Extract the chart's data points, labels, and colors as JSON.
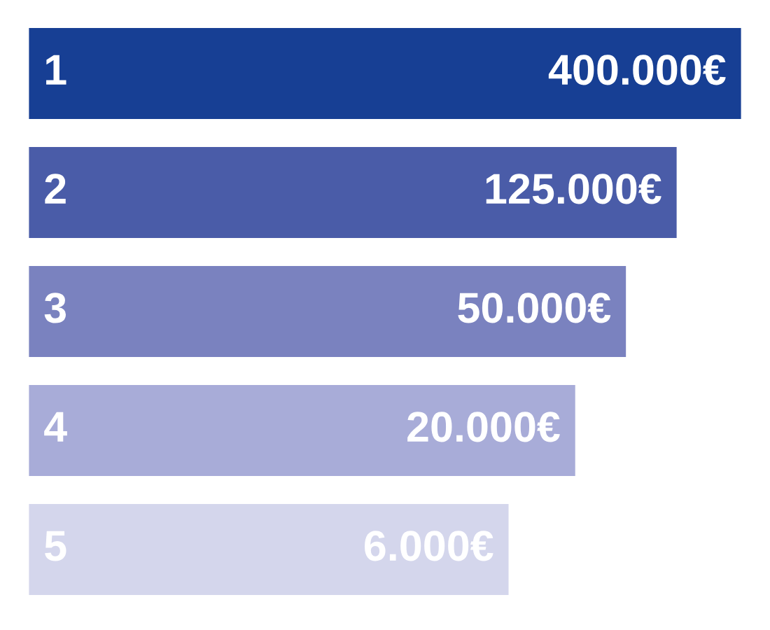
{
  "chart_data": {
    "type": "bar",
    "orientation": "horizontal",
    "log": "x",
    "xlim": [
      1,
      400000
    ],
    "tick_labels": false,
    "categories": [
      "1",
      "2",
      "3",
      "4",
      "5"
    ],
    "values": [
      400000,
      125000,
      50000,
      20000,
      6000
    ],
    "colors": [
      "#173f94",
      "#4a5ca8",
      "#7a82bf",
      "#a8acd8",
      "#d4d6ec"
    ],
    "value_labels": [
      "400.000€",
      "125.000€",
      "50.000€",
      "20.000€",
      "6.000€"
    ]
  }
}
